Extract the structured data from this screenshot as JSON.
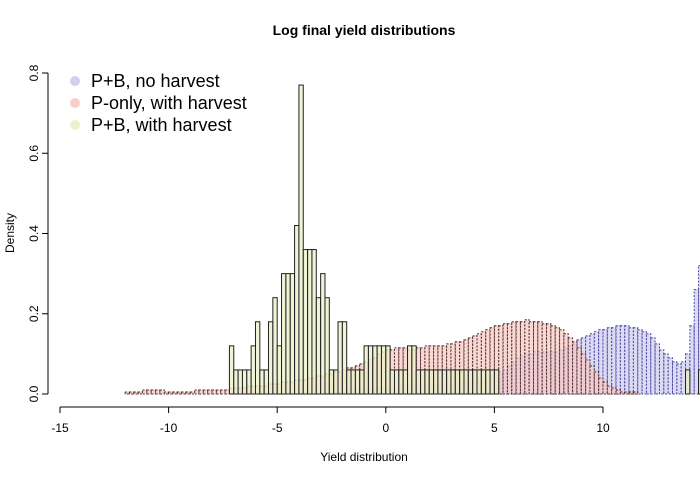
{
  "chart_data": {
    "type": "bar",
    "title": "Log final yield distributions",
    "xlabel": "Yield distribution",
    "ylabel": "Density",
    "xlim": [
      -15,
      10
    ],
    "ylim": [
      0,
      0.8
    ],
    "xticks": [
      -15,
      -10,
      -5,
      0,
      5,
      10
    ],
    "yticks": [
      0.0,
      0.2,
      0.4,
      0.6,
      0.8
    ],
    "ytick_labels": [
      "0.0",
      "0.2",
      "0.4",
      "0.6",
      "0.8"
    ],
    "legend_position": "top-left",
    "bin_width": 0.2,
    "series": [
      {
        "name": "P+B, no harvest",
        "fill": "#cfcaf0",
        "stroke": "#4a4aa0",
        "dashed": true,
        "x_start": -3.0,
        "values": [
          0.0,
          0.005,
          0.005,
          0.005,
          0.005,
          0.005,
          0.01,
          0.01,
          0.01,
          0.01,
          0.01,
          0.01,
          0.015,
          0.015,
          0.015,
          0.015,
          0.015,
          0.015,
          0.02,
          0.02,
          0.02,
          0.02,
          0.02,
          0.02,
          0.02,
          0.025,
          0.025,
          0.025,
          0.025,
          0.025,
          0.025,
          0.025,
          0.03,
          0.03,
          0.03,
          0.03,
          0.035,
          0.035,
          0.04,
          0.045,
          0.05,
          0.055,
          0.06,
          0.07,
          0.08,
          0.09,
          0.095,
          0.1,
          0.1,
          0.105,
          0.105,
          0.105,
          0.105,
          0.105,
          0.105,
          0.11,
          0.115,
          0.12,
          0.125,
          0.135,
          0.14,
          0.145,
          0.15,
          0.155,
          0.16,
          0.16,
          0.165,
          0.165,
          0.17,
          0.17,
          0.17,
          0.165,
          0.165,
          0.16,
          0.155,
          0.15,
          0.14,
          0.125,
          0.11,
          0.1,
          0.09,
          0.08,
          0.075,
          0.08,
          0.1,
          0.17,
          0.26,
          0.32,
          0.3,
          0.12,
          0.06,
          0.03,
          0.015,
          0.01,
          0.005,
          0.005
        ]
      },
      {
        "name": "P-only, with harvest",
        "fill": "#f8c8c0",
        "stroke": "#503030",
        "dashed": true,
        "x_start": -12.0,
        "values": [
          0.005,
          0.005,
          0.005,
          0.005,
          0.01,
          0.01,
          0.01,
          0.01,
          0.01,
          0.005,
          0.005,
          0.005,
          0.005,
          0.005,
          0.005,
          0.005,
          0.01,
          0.01,
          0.01,
          0.01,
          0.01,
          0.01,
          0.01,
          0.01,
          0.015,
          0.015,
          0.015,
          0.015,
          0.02,
          0.02,
          0.02,
          0.02,
          0.02,
          0.025,
          0.025,
          0.025,
          0.03,
          0.03,
          0.03,
          0.035,
          0.035,
          0.035,
          0.04,
          0.04,
          0.045,
          0.045,
          0.05,
          0.05,
          0.055,
          0.055,
          0.06,
          0.065,
          0.065,
          0.07,
          0.075,
          0.08,
          0.085,
          0.09,
          0.1,
          0.105,
          0.11,
          0.11,
          0.115,
          0.115,
          0.115,
          0.11,
          0.11,
          0.115,
          0.115,
          0.12,
          0.12,
          0.12,
          0.12,
          0.12,
          0.125,
          0.125,
          0.13,
          0.13,
          0.135,
          0.14,
          0.145,
          0.15,
          0.155,
          0.16,
          0.165,
          0.17,
          0.17,
          0.175,
          0.175,
          0.18,
          0.18,
          0.18,
          0.185,
          0.18,
          0.18,
          0.18,
          0.175,
          0.175,
          0.17,
          0.165,
          0.16,
          0.15,
          0.14,
          0.13,
          0.115,
          0.1,
          0.085,
          0.07,
          0.055,
          0.04,
          0.03,
          0.02,
          0.015,
          0.01,
          0.005,
          0.005,
          0.005,
          0.005
        ]
      },
      {
        "name": "P+B, with harvest",
        "fill": "#eaf0c8",
        "stroke": "#222222",
        "dashed": false,
        "x_start": -7.4,
        "values": [
          0.0,
          0.12,
          0.06,
          0.06,
          0.06,
          0.06,
          0.12,
          0.18,
          0.06,
          0.06,
          0.18,
          0.24,
          0.12,
          0.3,
          0.3,
          0.3,
          0.42,
          0.77,
          0.36,
          0.36,
          0.36,
          0.24,
          0.3,
          0.24,
          0.06,
          0.06,
          0.18,
          0.18,
          0.06,
          0.06,
          0.06,
          0.06,
          0.12,
          0.12,
          0.12,
          0.12,
          0.12,
          0.12,
          0.06,
          0.06,
          0.06,
          0.06,
          0.12,
          0.12,
          0.06,
          0.06,
          0.06,
          0.06,
          0.06,
          0.06,
          0.06,
          0.06,
          0.06,
          0.06,
          0.06,
          0.06,
          0.06,
          0.06,
          0.06,
          0.06,
          0.06,
          0.06,
          0.06,
          0.0,
          0.0,
          0.0,
          0.0,
          0.0,
          0.0,
          0.0,
          0.0,
          0.0,
          0.0,
          0.0,
          0.0,
          0.0,
          0.0,
          0.0,
          0.0,
          0.0,
          0.0,
          0.0,
          0.0,
          0.0,
          0.0,
          0.0,
          0.0,
          0.0,
          0.0,
          0.0,
          0.0,
          0.0,
          0.0,
          0.0,
          0.0,
          0.0,
          0.0,
          0.0,
          0.0,
          0.0,
          0.0,
          0.0,
          0.0,
          0.0,
          0.0,
          0.0,
          0.06,
          0.0,
          0.0,
          0.06,
          0.06,
          0.0,
          0.06,
          0.06,
          0.06,
          0.06,
          0.06,
          0.06,
          0.06,
          0.06,
          0.06,
          0.12,
          0.06,
          0.0
        ]
      }
    ]
  }
}
